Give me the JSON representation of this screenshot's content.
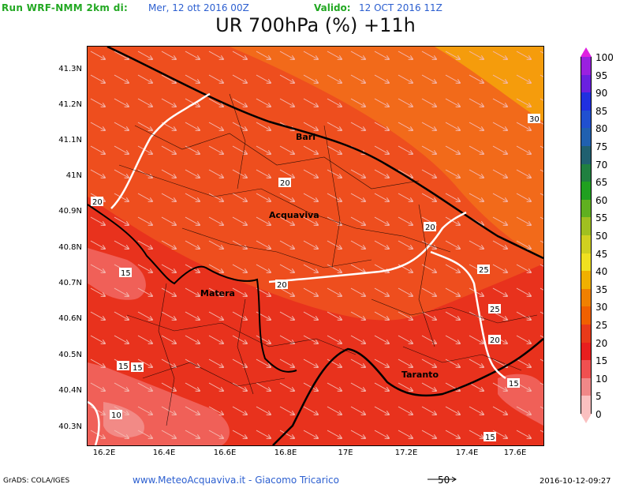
{
  "header": {
    "run_label": "Run WRF-NMM 2km di:",
    "run_date": "Mer, 12 ott 2016 00Z",
    "valid_label": "Valido:",
    "valid_time": "12 OCT 2016 11Z"
  },
  "title": "UR 700hPa (%) +11h",
  "map": {
    "lat_ticks": [
      "41.3N",
      "41.2N",
      "41.1N",
      "41N",
      "40.9N",
      "40.8N",
      "40.7N",
      "40.6N",
      "40.5N",
      "40.4N",
      "40.3N"
    ],
    "lon_ticks": [
      "16.2E",
      "16.4E",
      "16.6E",
      "16.8E",
      "17E",
      "17.2E",
      "17.4E",
      "17.6E"
    ],
    "cities": [
      "Bari",
      "Acquaviva",
      "Matera",
      "Taranto"
    ],
    "contour_labels": [
      "30",
      "20",
      "20",
      "20",
      "20",
      "25",
      "25",
      "20",
      "15",
      "15",
      "15",
      "15",
      "10",
      "15"
    ]
  },
  "colorbar": {
    "levels": [
      "100",
      "95",
      "90",
      "85",
      "80",
      "75",
      "70",
      "65",
      "60",
      "55",
      "50",
      "45",
      "40",
      "35",
      "30",
      "25",
      "20",
      "15",
      "10",
      "5",
      "0"
    ],
    "colors": [
      "#e020e0",
      "#9a20e0",
      "#6a20e0",
      "#2030e0",
      "#2050d0",
      "#2060b0",
      "#206070",
      "#208040",
      "#20a020",
      "#60b020",
      "#a0c020",
      "#d0d020",
      "#f0e020",
      "#f0b000",
      "#f08000",
      "#f06000",
      "#e83a1a",
      "#e81e1e",
      "#f05050",
      "#f08888",
      "#fac0c0"
    ]
  },
  "footer": {
    "grads": "GrADS: COLA/IGES",
    "site": "www.MeteoAcquaviva.it - Giacomo Tricarico",
    "vector_ref": "50",
    "timestamp": "2016-10-12-09:27"
  }
}
